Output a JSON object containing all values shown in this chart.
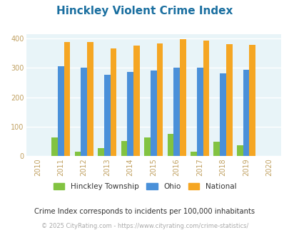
{
  "title": "Hinckley Violent Crime Index",
  "title_color": "#1a6fa0",
  "years": [
    2010,
    2011,
    2012,
    2013,
    2014,
    2015,
    2016,
    2017,
    2018,
    2019,
    2020
  ],
  "data_years": [
    2011,
    2012,
    2013,
    2014,
    2015,
    2016,
    2017,
    2018,
    2019
  ],
  "hinckley": [
    65,
    15,
    28,
    53,
    63,
    75,
    15,
    50,
    38
  ],
  "ohio": [
    306,
    300,
    276,
    287,
    292,
    301,
    300,
    281,
    294
  ],
  "national": [
    387,
    387,
    367,
    376,
    384,
    398,
    394,
    381,
    379
  ],
  "hinckley_color": "#82c341",
  "ohio_color": "#4a90d9",
  "national_color": "#f5a623",
  "bg_color": "#e8f4f8",
  "ylabel_ticks": [
    0,
    100,
    200,
    300,
    400
  ],
  "ylim": [
    0,
    415
  ],
  "xlim": [
    2009.5,
    2020.5
  ],
  "bar_width": 0.27,
  "legend_labels": [
    "Hinckley Township",
    "Ohio",
    "National"
  ],
  "subtitle": "Crime Index corresponds to incidents per 100,000 inhabitants",
  "subtitle_color": "#333333",
  "footer": "© 2025 CityRating.com - https://www.cityrating.com/crime-statistics/",
  "footer_color": "#aaaaaa",
  "grid_color": "#ffffff",
  "tick_color": "#c0a060"
}
